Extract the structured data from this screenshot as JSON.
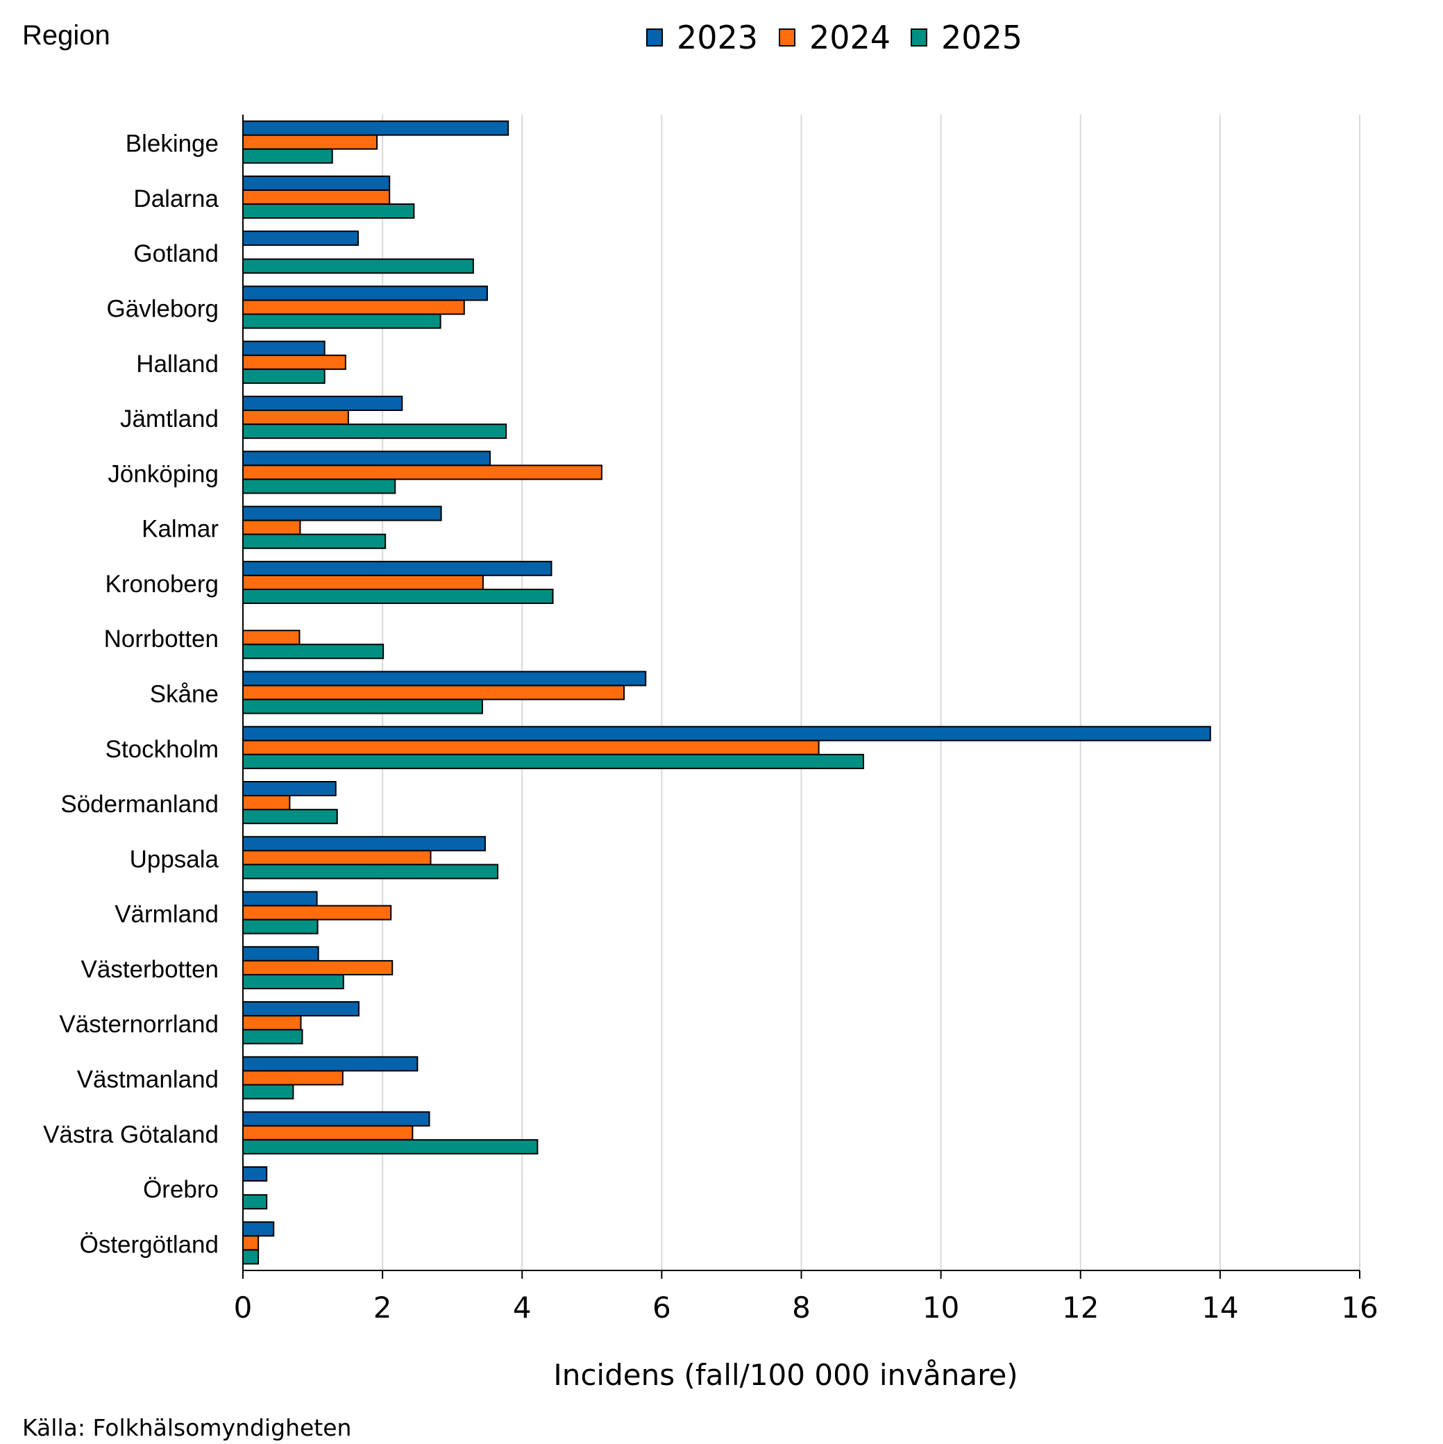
{
  "chart_data": {
    "type": "bar",
    "orientation": "horizontal",
    "yaxis_title": "Region",
    "xlabel": "Incidens (fall/100 000 invånare)",
    "source": "Källa: Folkhälsomyndigheten",
    "xlim": [
      0,
      16
    ],
    "xticks": [
      0,
      2,
      4,
      6,
      8,
      10,
      12,
      14,
      16
    ],
    "grid": "vertical",
    "legend_position": "top-center",
    "categories": [
      "Blekinge",
      "Dalarna",
      "Gotland",
      "Gävleborg",
      "Halland",
      "Jämtland",
      "Jönköping",
      "Kalmar",
      "Kronoberg",
      "Norrbotten",
      "Skåne",
      "Stockholm",
      "Södermanland",
      "Uppsala",
      "Värmland",
      "Västerbotten",
      "Västernorrland",
      "Västmanland",
      "Västra Götaland",
      "Örebro",
      "Östergötland"
    ],
    "series": [
      {
        "name": "2023",
        "color": "#0563AB",
        "values": [
          3.8,
          2.1,
          1.65,
          3.5,
          1.17,
          2.28,
          3.54,
          2.84,
          4.42,
          0,
          5.77,
          13.86,
          1.33,
          3.47,
          1.06,
          1.08,
          1.66,
          2.5,
          2.67,
          0.34,
          0.44
        ]
      },
      {
        "name": "2024",
        "color": "#FF6D0F",
        "values": [
          1.92,
          2.1,
          0,
          3.17,
          1.47,
          1.51,
          5.14,
          0.82,
          3.44,
          0.81,
          5.46,
          8.25,
          0.67,
          2.69,
          2.12,
          2.14,
          0.83,
          1.43,
          2.43,
          0,
          0.22
        ]
      },
      {
        "name": "2025",
        "color": "#009083",
        "values": [
          1.28,
          2.45,
          3.3,
          2.83,
          1.17,
          3.77,
          2.18,
          2.04,
          4.44,
          2.01,
          3.43,
          8.89,
          1.35,
          3.65,
          1.07,
          1.44,
          0.85,
          0.72,
          4.22,
          0.34,
          0.22
        ]
      }
    ]
  }
}
